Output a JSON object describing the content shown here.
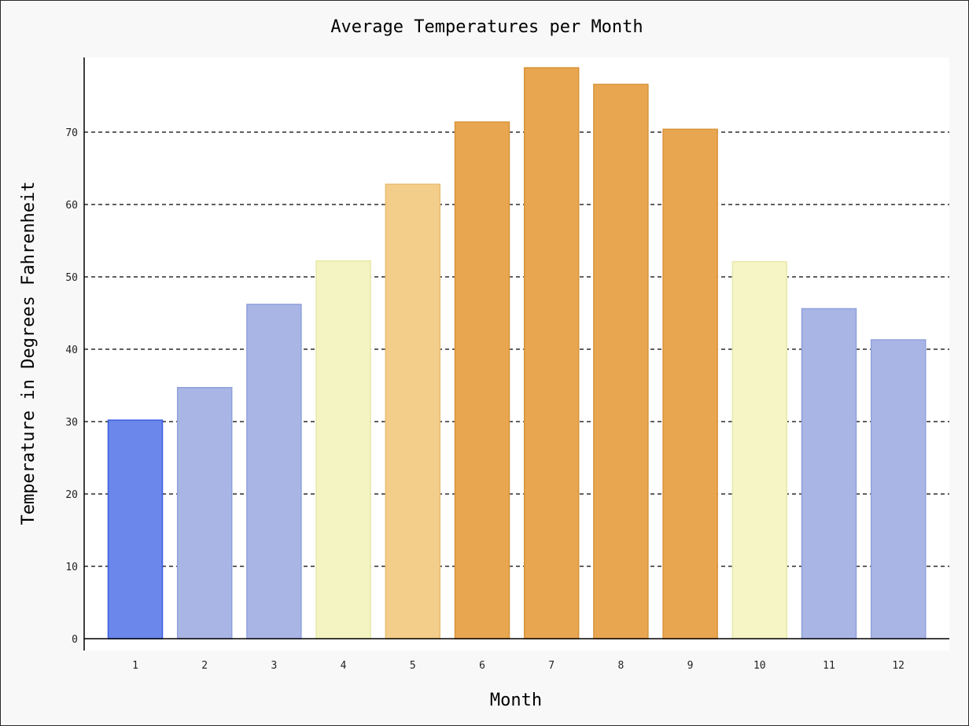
{
  "chart_data": {
    "type": "bar",
    "title": "Average Temperatures per Month",
    "xlabel": "Month",
    "ylabel": "Temperature in Degrees Fahrenheit",
    "categories": [
      "1",
      "2",
      "3",
      "4",
      "5",
      "6",
      "7",
      "8",
      "9",
      "10",
      "11",
      "12"
    ],
    "values": [
      30.2,
      34.7,
      46.2,
      52.2,
      62.8,
      71.4,
      78.9,
      76.6,
      70.4,
      52.1,
      45.6,
      41.3
    ],
    "ylim": [
      0,
      80
    ],
    "yticks": [
      0,
      10,
      20,
      30,
      40,
      50,
      60,
      70
    ],
    "grid": true,
    "legend": "none",
    "colors": {
      "fill": [
        "#6b87eb",
        "#a9b6e5",
        "#a9b6e5",
        "#f3f4c2",
        "#f3cd8a",
        "#e8a650",
        "#e8a650",
        "#e8a650",
        "#e8a650",
        "#f5f5c5",
        "#a9b6e5",
        "#a9b6e5"
      ],
      "stroke": [
        "#3a5ce0",
        "#8fa0dc",
        "#8fa0dc",
        "#e6e8a8",
        "#e9bd72",
        "#d9933a",
        "#d9933a",
        "#d9933a",
        "#d9933a",
        "#e8e9ad",
        "#8fa0dc",
        "#8fa0dc"
      ]
    }
  }
}
